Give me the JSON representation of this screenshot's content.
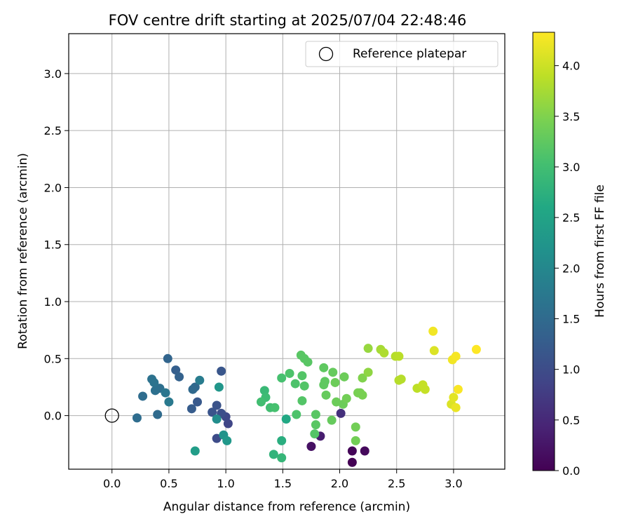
{
  "chart_data": {
    "type": "scatter",
    "title": "FOV centre drift starting at 2025/07/04 22:48:46",
    "xlabel": "Angular distance from reference (arcmin)",
    "ylabel": "Rotation from reference (arcmin)",
    "xlim": [
      -0.38,
      3.45
    ],
    "ylim": [
      -0.47,
      3.35
    ],
    "xticks": [
      0.0,
      0.5,
      1.0,
      1.5,
      2.0,
      2.5,
      3.0
    ],
    "xtick_labels": [
      "0.0",
      "0.5",
      "1.0",
      "1.5",
      "2.0",
      "2.5",
      "3.0"
    ],
    "yticks": [
      0.0,
      0.5,
      1.0,
      1.5,
      2.0,
      2.5,
      3.0
    ],
    "ytick_labels": [
      "0.0",
      "0.5",
      "1.0",
      "1.5",
      "2.0",
      "2.5",
      "3.0"
    ],
    "grid": true,
    "legend": {
      "placement": "top-right",
      "entries": [
        "Reference platepar"
      ]
    },
    "reference_point": {
      "x": 0.0,
      "y": 0.0,
      "label": "Reference platepar"
    },
    "colorbar": {
      "label": "Hours from first FF file",
      "range": [
        0.0,
        4.33
      ],
      "ticks": [
        0.0,
        0.5,
        1.0,
        1.5,
        2.0,
        2.5,
        3.0,
        3.5,
        4.0
      ],
      "tick_labels": [
        "0.0",
        "0.5",
        "1.0",
        "1.5",
        "2.0",
        "2.5",
        "3.0",
        "3.5",
        "4.0"
      ],
      "colormap": "viridis"
    },
    "points": [
      {
        "x": 2.11,
        "y": -0.41,
        "t": 0.0
      },
      {
        "x": 2.11,
        "y": -0.31,
        "t": 0.05
      },
      {
        "x": 2.22,
        "y": -0.31,
        "t": 0.1
      },
      {
        "x": 1.75,
        "y": -0.27,
        "t": 0.2
      },
      {
        "x": 1.83,
        "y": -0.18,
        "t": 0.35
      },
      {
        "x": 2.01,
        "y": 0.02,
        "t": 0.6
      },
      {
        "x": 1.02,
        "y": -0.07,
        "t": 0.9
      },
      {
        "x": 1.0,
        "y": -0.01,
        "t": 0.95
      },
      {
        "x": 0.92,
        "y": -0.2,
        "t": 1.0
      },
      {
        "x": 0.96,
        "y": 0.02,
        "t": 1.05
      },
      {
        "x": 0.92,
        "y": 0.09,
        "t": 1.1
      },
      {
        "x": 0.88,
        "y": 0.03,
        "t": 1.12
      },
      {
        "x": 0.96,
        "y": 0.39,
        "t": 1.15
      },
      {
        "x": 0.75,
        "y": 0.12,
        "t": 1.2
      },
      {
        "x": 0.7,
        "y": 0.06,
        "t": 1.25
      },
      {
        "x": 0.56,
        "y": 0.4,
        "t": 1.3
      },
      {
        "x": 0.59,
        "y": 0.34,
        "t": 1.35
      },
      {
        "x": 0.49,
        "y": 0.5,
        "t": 1.4
      },
      {
        "x": 0.73,
        "y": 0.25,
        "t": 1.45
      },
      {
        "x": 0.71,
        "y": 0.23,
        "t": 1.48
      },
      {
        "x": 0.4,
        "y": 0.01,
        "t": 1.5
      },
      {
        "x": 0.22,
        "y": -0.02,
        "t": 1.55
      },
      {
        "x": 0.27,
        "y": 0.17,
        "t": 1.55
      },
      {
        "x": 0.42,
        "y": 0.24,
        "t": 1.58
      },
      {
        "x": 0.38,
        "y": 0.22,
        "t": 1.6
      },
      {
        "x": 0.35,
        "y": 0.32,
        "t": 1.62
      },
      {
        "x": 0.37,
        "y": 0.29,
        "t": 1.65
      },
      {
        "x": 0.47,
        "y": 0.2,
        "t": 1.7
      },
      {
        "x": 0.5,
        "y": 0.12,
        "t": 1.75
      },
      {
        "x": 0.77,
        "y": 0.31,
        "t": 1.8
      },
      {
        "x": 0.92,
        "y": -0.03,
        "t": 2.1
      },
      {
        "x": 0.98,
        "y": -0.17,
        "t": 2.2
      },
      {
        "x": 0.94,
        "y": 0.25,
        "t": 2.25
      },
      {
        "x": 1.01,
        "y": -0.22,
        "t": 2.3
      },
      {
        "x": 0.73,
        "y": -0.31,
        "t": 2.4
      },
      {
        "x": 1.53,
        "y": -0.03,
        "t": 2.6
      },
      {
        "x": 1.49,
        "y": -0.22,
        "t": 2.7
      },
      {
        "x": 1.42,
        "y": -0.34,
        "t": 2.8
      },
      {
        "x": 1.49,
        "y": -0.37,
        "t": 2.85
      },
      {
        "x": 1.34,
        "y": 0.22,
        "t": 2.9
      },
      {
        "x": 1.35,
        "y": 0.16,
        "t": 2.95
      },
      {
        "x": 1.31,
        "y": 0.12,
        "t": 3.0
      },
      {
        "x": 1.39,
        "y": 0.07,
        "t": 3.0
      },
      {
        "x": 1.43,
        "y": 0.07,
        "t": 3.05
      },
      {
        "x": 1.49,
        "y": 0.33,
        "t": 3.05
      },
      {
        "x": 1.56,
        "y": 0.37,
        "t": 3.1
      },
      {
        "x": 1.61,
        "y": 0.28,
        "t": 3.1
      },
      {
        "x": 1.67,
        "y": 0.35,
        "t": 3.15
      },
      {
        "x": 1.69,
        "y": 0.26,
        "t": 3.15
      },
      {
        "x": 1.62,
        "y": 0.01,
        "t": 3.1
      },
      {
        "x": 1.67,
        "y": 0.13,
        "t": 3.15
      },
      {
        "x": 1.66,
        "y": 0.53,
        "t": 3.2
      },
      {
        "x": 1.69,
        "y": 0.5,
        "t": 3.2
      },
      {
        "x": 1.72,
        "y": 0.47,
        "t": 3.2
      },
      {
        "x": 1.78,
        "y": -0.16,
        "t": 3.15
      },
      {
        "x": 1.79,
        "y": -0.08,
        "t": 3.2
      },
      {
        "x": 1.79,
        "y": 0.01,
        "t": 3.2
      },
      {
        "x": 1.86,
        "y": 0.42,
        "t": 3.25
      },
      {
        "x": 1.87,
        "y": 0.3,
        "t": 3.25
      },
      {
        "x": 1.86,
        "y": 0.27,
        "t": 3.25
      },
      {
        "x": 1.88,
        "y": 0.18,
        "t": 3.3
      },
      {
        "x": 1.93,
        "y": -0.04,
        "t": 3.3
      },
      {
        "x": 1.94,
        "y": 0.38,
        "t": 3.3
      },
      {
        "x": 1.96,
        "y": 0.29,
        "t": 3.35
      },
      {
        "x": 1.97,
        "y": 0.12,
        "t": 3.35
      },
      {
        "x": 2.03,
        "y": 0.1,
        "t": 3.35
      },
      {
        "x": 2.04,
        "y": 0.34,
        "t": 3.35
      },
      {
        "x": 2.06,
        "y": 0.15,
        "t": 3.4
      },
      {
        "x": 2.14,
        "y": -0.1,
        "t": 3.4
      },
      {
        "x": 2.14,
        "y": -0.22,
        "t": 3.4
      },
      {
        "x": 2.16,
        "y": 0.2,
        "t": 3.45
      },
      {
        "x": 2.18,
        "y": 0.2,
        "t": 3.45
      },
      {
        "x": 2.2,
        "y": 0.18,
        "t": 3.45
      },
      {
        "x": 2.2,
        "y": 0.33,
        "t": 3.5
      },
      {
        "x": 2.25,
        "y": 0.38,
        "t": 3.6
      },
      {
        "x": 2.25,
        "y": 0.59,
        "t": 3.65
      },
      {
        "x": 2.36,
        "y": 0.58,
        "t": 3.75
      },
      {
        "x": 2.39,
        "y": 0.55,
        "t": 3.8
      },
      {
        "x": 2.49,
        "y": 0.52,
        "t": 3.85
      },
      {
        "x": 2.52,
        "y": 0.52,
        "t": 3.88
      },
      {
        "x": 2.52,
        "y": 0.31,
        "t": 3.85
      },
      {
        "x": 2.54,
        "y": 0.32,
        "t": 3.85
      },
      {
        "x": 2.68,
        "y": 0.24,
        "t": 3.9
      },
      {
        "x": 2.73,
        "y": 0.27,
        "t": 3.95
      },
      {
        "x": 2.75,
        "y": 0.23,
        "t": 3.95
      },
      {
        "x": 2.82,
        "y": 0.74,
        "t": 4.25
      },
      {
        "x": 2.83,
        "y": 0.57,
        "t": 4.1
      },
      {
        "x": 2.98,
        "y": 0.1,
        "t": 4.1
      },
      {
        "x": 3.0,
        "y": 0.16,
        "t": 4.15
      },
      {
        "x": 2.99,
        "y": 0.49,
        "t": 4.25
      },
      {
        "x": 3.02,
        "y": 0.52,
        "t": 4.28
      },
      {
        "x": 3.02,
        "y": 0.07,
        "t": 4.2
      },
      {
        "x": 3.04,
        "y": 0.23,
        "t": 4.3
      },
      {
        "x": 3.2,
        "y": 0.58,
        "t": 4.33
      }
    ]
  }
}
